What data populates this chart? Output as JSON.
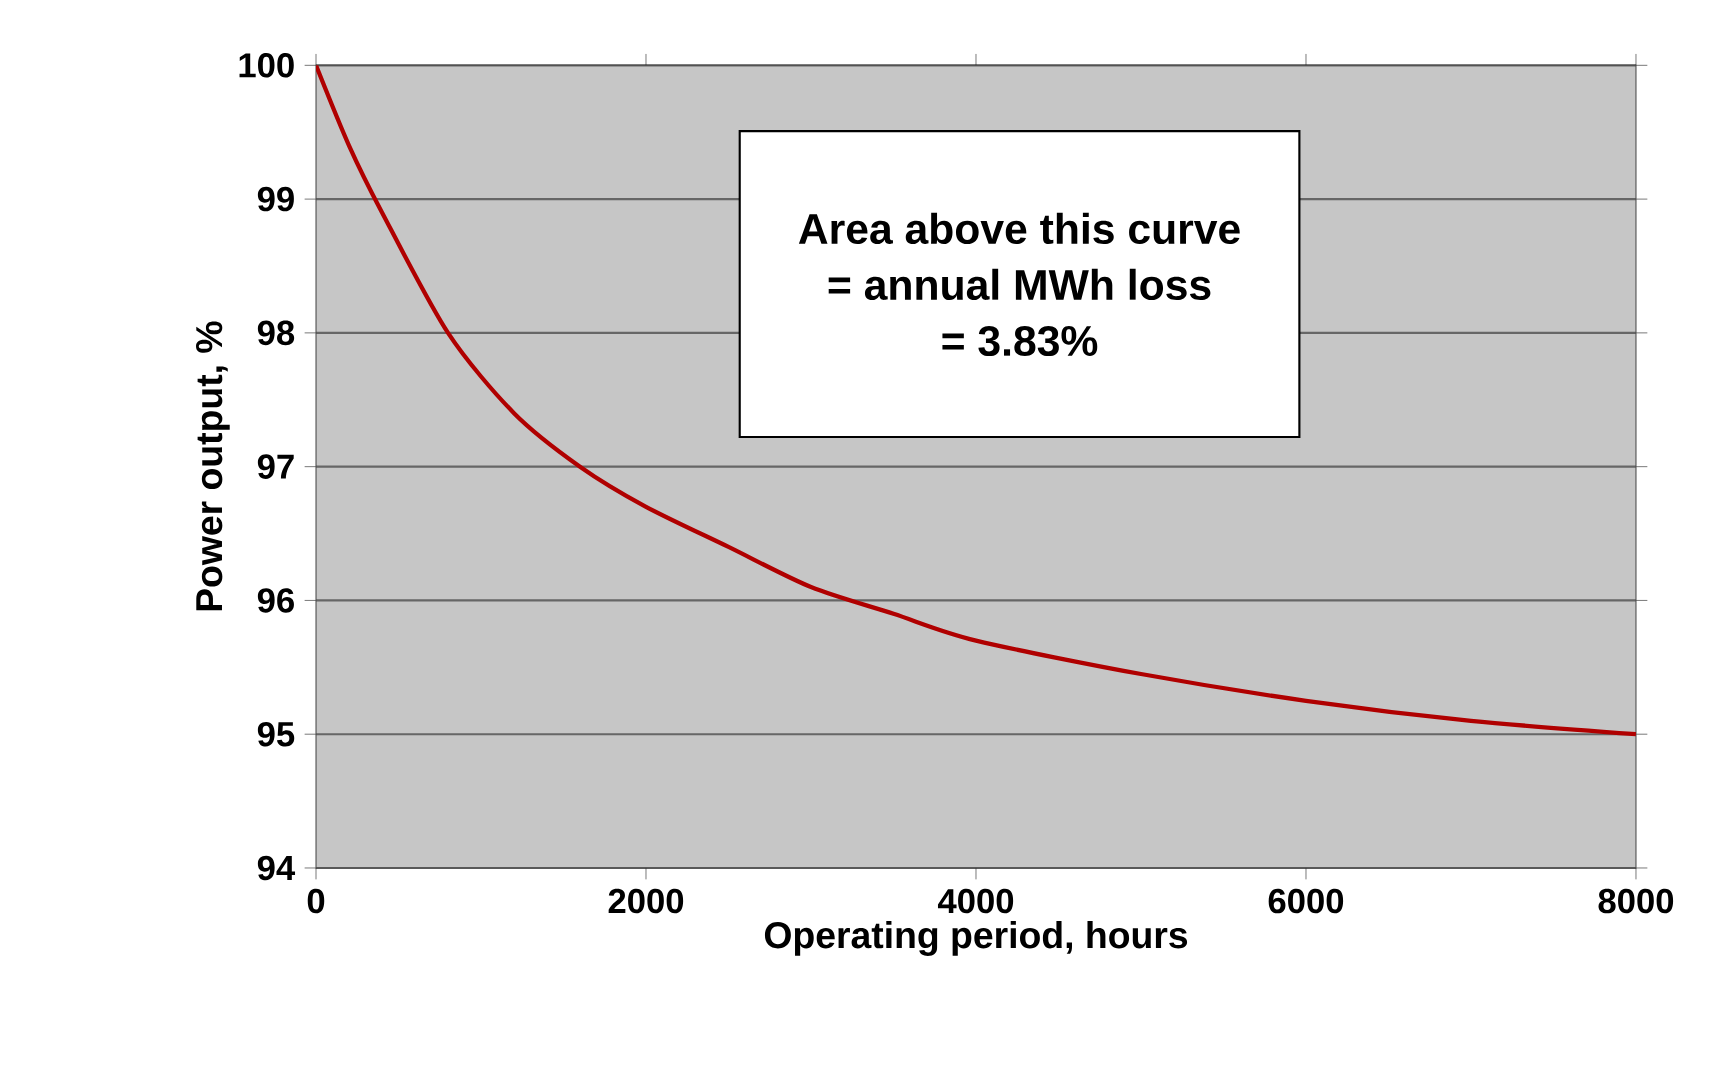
{
  "chart_data": {
    "type": "line",
    "xlabel": "Operating period, hours",
    "ylabel": "Power output, %",
    "x": [
      0,
      200,
      400,
      800,
      1200,
      1600,
      2000,
      2500,
      3000,
      3500,
      4000,
      5000,
      6000,
      7000,
      8000
    ],
    "series": [
      {
        "color": "#b00000",
        "values": [
          100,
          99.4,
          98.9,
          98.0,
          97.4,
          97.0,
          96.7,
          96.4,
          96.1,
          95.9,
          95.7,
          95.45,
          95.25,
          95.1,
          95.0
        ]
      }
    ],
    "xlim": [
      0,
      8000
    ],
    "ylim": [
      94,
      100
    ],
    "xticks": [
      0,
      2000,
      4000,
      6000,
      8000
    ],
    "yticks": [
      94,
      95,
      96,
      97,
      98,
      99,
      100
    ],
    "grid": "y",
    "marker": "none",
    "line_style": "solid",
    "annotations": [
      "Area above this curve",
      "= annual MWh loss",
      "= 3.83%"
    ]
  }
}
